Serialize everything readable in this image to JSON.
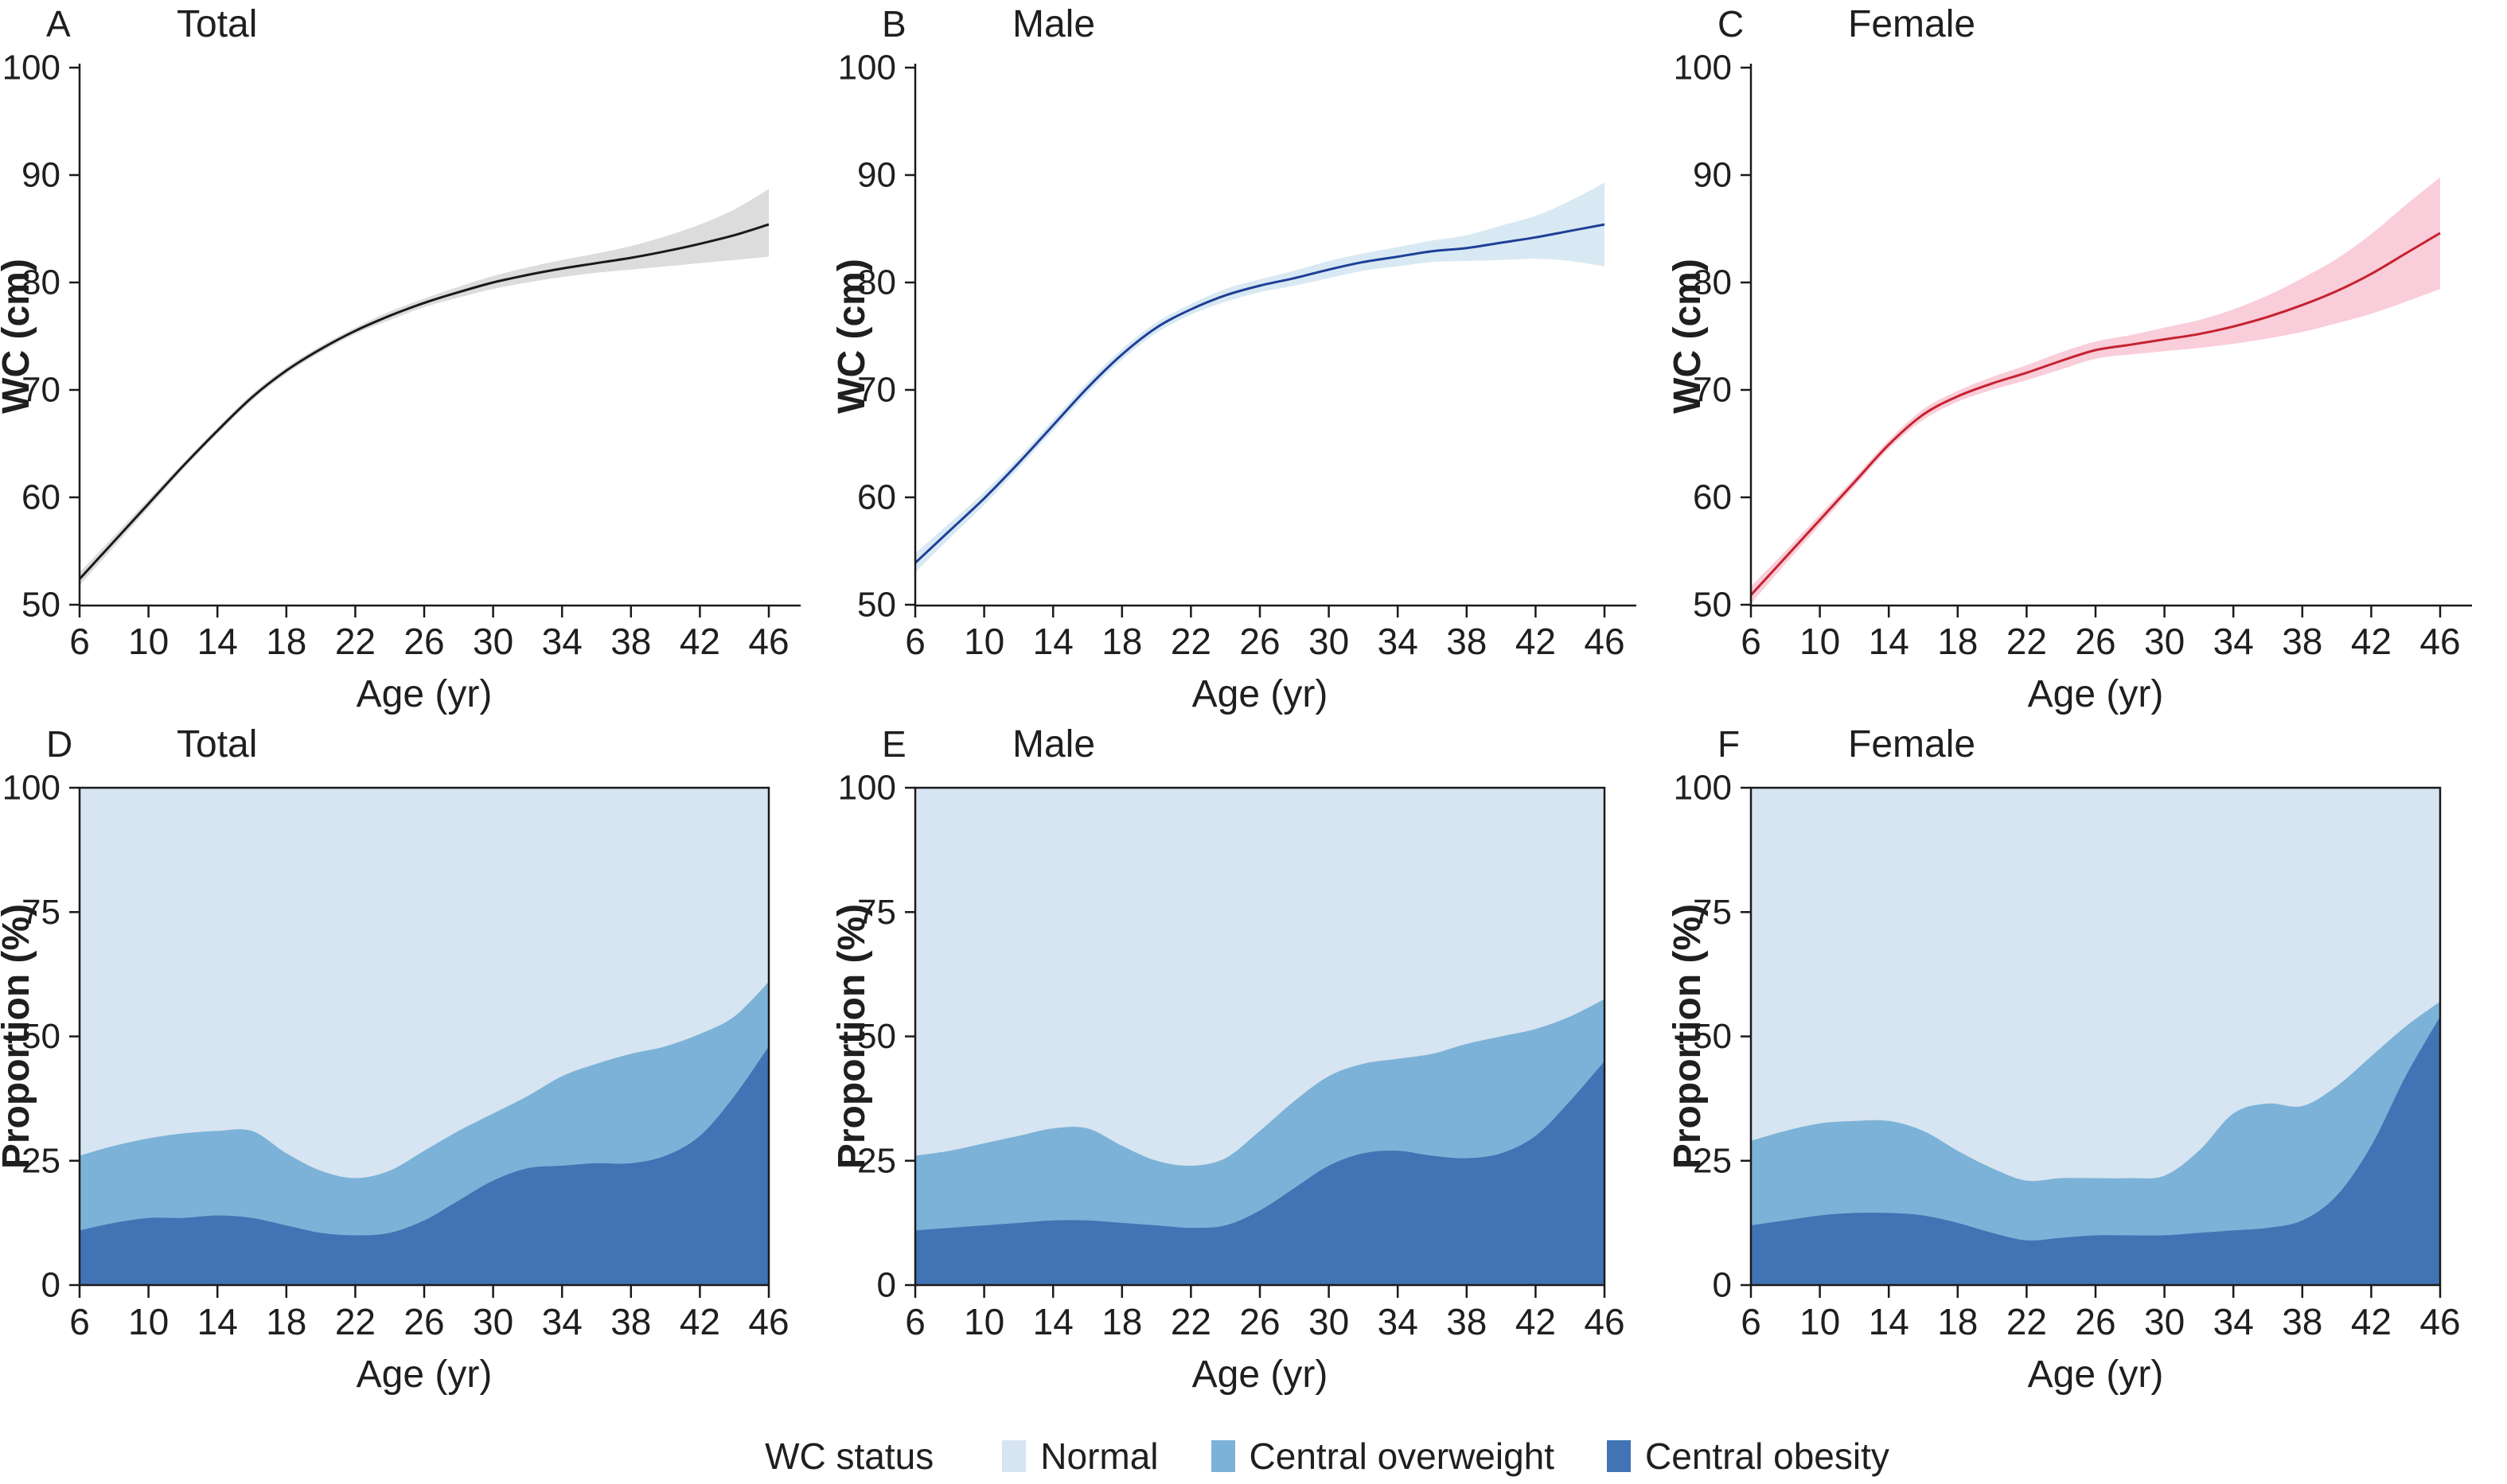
{
  "figure": {
    "background": "#ffffff",
    "text_color": "#1f1f1f",
    "axis_color": "#1a1a1a"
  },
  "legend": {
    "title": "WC status",
    "items": [
      {
        "label": "Normal",
        "color": "#d7e4f1"
      },
      {
        "label": "Central overweight",
        "color": "#7cb2d7"
      },
      {
        "label": "Central obesity",
        "color": "#4273b4"
      }
    ]
  },
  "chart_data": [
    {
      "panel_label": "A",
      "title": "Total",
      "type": "line",
      "xlabel": "Age (yr)",
      "ylabel": "WC (cm)",
      "xlim": [
        6,
        46
      ],
      "ylim": [
        50,
        100
      ],
      "xticks": [
        6,
        10,
        14,
        18,
        22,
        26,
        30,
        34,
        38,
        42,
        46
      ],
      "yticks": [
        50,
        60,
        70,
        80,
        90,
        100
      ],
      "line_color": "#1a1a1a",
      "band_color": "#dcdcdc",
      "x": [
        6,
        8,
        10,
        12,
        14,
        16,
        18,
        20,
        22,
        24,
        26,
        28,
        30,
        32,
        34,
        36,
        38,
        40,
        42,
        44,
        46
      ],
      "y": [
        52.4,
        55.9,
        59.4,
        62.9,
        66.2,
        69.3,
        71.8,
        73.8,
        75.5,
        76.9,
        78.1,
        79.1,
        80.0,
        80.7,
        81.3,
        81.8,
        82.3,
        82.9,
        83.6,
        84.4,
        85.4
      ],
      "ci_lower": [
        51.8,
        55.4,
        59.0,
        62.6,
        65.9,
        69.0,
        71.5,
        73.5,
        75.2,
        76.5,
        77.7,
        78.6,
        79.4,
        80.0,
        80.5,
        80.9,
        81.2,
        81.5,
        81.8,
        82.1,
        82.4
      ],
      "ci_upper": [
        53.0,
        56.4,
        59.8,
        63.2,
        66.5,
        69.6,
        72.1,
        74.1,
        75.8,
        77.3,
        78.5,
        79.6,
        80.6,
        81.4,
        82.1,
        82.7,
        83.4,
        84.3,
        85.4,
        86.8,
        88.7
      ]
    },
    {
      "panel_label": "B",
      "title": "Male",
      "type": "line",
      "xlabel": "Age (yr)",
      "ylabel": "WC (cm)",
      "xlim": [
        6,
        46
      ],
      "ylim": [
        50,
        100
      ],
      "xticks": [
        6,
        10,
        14,
        18,
        22,
        26,
        30,
        34,
        38,
        42,
        46
      ],
      "yticks": [
        50,
        60,
        70,
        80,
        90,
        100
      ],
      "line_color": "#1f3f96",
      "band_color": "#d9e9f3",
      "x": [
        6,
        8,
        10,
        12,
        14,
        16,
        18,
        20,
        22,
        24,
        26,
        28,
        30,
        32,
        34,
        36,
        38,
        40,
        42,
        44,
        46
      ],
      "y": [
        53.9,
        56.9,
        59.9,
        63.2,
        66.7,
        70.2,
        73.3,
        75.8,
        77.5,
        78.8,
        79.7,
        80.4,
        81.2,
        81.9,
        82.4,
        82.9,
        83.2,
        83.7,
        84.2,
        84.8,
        85.4
      ],
      "ci_lower": [
        53.0,
        56.2,
        59.3,
        62.7,
        66.2,
        69.7,
        72.8,
        75.3,
        77.0,
        78.2,
        79.1,
        79.7,
        80.4,
        81.1,
        81.5,
        81.9,
        82.0,
        82.1,
        82.2,
        82.0,
        81.5
      ],
      "ci_upper": [
        54.8,
        57.6,
        60.5,
        63.7,
        67.2,
        70.7,
        73.8,
        76.3,
        78.0,
        79.4,
        80.3,
        81.1,
        82.0,
        82.7,
        83.3,
        83.9,
        84.4,
        85.3,
        86.2,
        87.6,
        89.3
      ]
    },
    {
      "panel_label": "C",
      "title": "Female",
      "type": "line",
      "xlabel": "Age (yr)",
      "ylabel": "WC (cm)",
      "xlim": [
        6,
        46
      ],
      "ylim": [
        50,
        100
      ],
      "xticks": [
        6,
        10,
        14,
        18,
        22,
        26,
        30,
        34,
        38,
        42,
        46
      ],
      "yticks": [
        50,
        60,
        70,
        80,
        90,
        100
      ],
      "line_color": "#c52230",
      "band_color": "#f9cdd9",
      "x": [
        6,
        8,
        10,
        12,
        14,
        16,
        18,
        20,
        22,
        24,
        26,
        28,
        30,
        32,
        34,
        36,
        38,
        40,
        42,
        44,
        46
      ],
      "y": [
        50.9,
        54.4,
        57.9,
        61.4,
        64.9,
        67.7,
        69.4,
        70.6,
        71.6,
        72.7,
        73.7,
        74.2,
        74.7,
        75.2,
        75.9,
        76.8,
        77.9,
        79.2,
        80.8,
        82.7,
        84.6
      ],
      "ci_lower": [
        50.1,
        53.8,
        57.4,
        61.0,
        64.5,
        67.2,
        68.9,
        70.0,
        70.9,
        71.9,
        72.9,
        73.3,
        73.6,
        73.9,
        74.3,
        74.8,
        75.4,
        76.2,
        77.1,
        78.2,
        79.4
      ],
      "ci_upper": [
        51.7,
        55.0,
        58.4,
        61.8,
        65.3,
        68.2,
        69.9,
        71.2,
        72.3,
        73.5,
        74.5,
        75.1,
        75.8,
        76.5,
        77.5,
        78.8,
        80.4,
        82.2,
        84.5,
        87.2,
        89.8
      ]
    },
    {
      "panel_label": "D",
      "title": "Total",
      "type": "stacked_area",
      "xlabel": "Age (yr)",
      "ylabel": "Proportion (%)",
      "xlim": [
        6,
        46
      ],
      "ylim": [
        0,
        100
      ],
      "xticks": [
        6,
        10,
        14,
        18,
        22,
        26,
        30,
        34,
        38,
        42,
        46
      ],
      "yticks": [
        0,
        25,
        50,
        75,
        100
      ],
      "x": [
        6,
        8,
        10,
        12,
        14,
        16,
        18,
        20,
        22,
        24,
        26,
        28,
        30,
        32,
        34,
        36,
        38,
        40,
        42,
        44,
        46
      ],
      "series": [
        {
          "name": "Normal",
          "color": "#d7e4f1",
          "values": [
            74,
            72,
            70.5,
            69.5,
            69,
            69,
            73.5,
            77,
            78.5,
            77,
            73,
            69,
            65.5,
            62,
            58,
            55.5,
            53.5,
            52,
            49.5,
            46,
            39
          ]
        },
        {
          "name": "Central overweight",
          "color": "#7cb2d7",
          "values": [
            15,
            15.5,
            16,
            17,
            17,
            17.5,
            14.5,
            12.5,
            11.5,
            12.5,
            14,
            14,
            13.5,
            14.5,
            18,
            20,
            22,
            22,
            20.5,
            16,
            13
          ]
        },
        {
          "name": "Central obesity",
          "color": "#4273b4",
          "values": [
            11,
            12.5,
            13.5,
            13.5,
            14,
            13.5,
            12,
            10.5,
            10,
            10.5,
            13,
            17,
            21,
            23.5,
            24,
            24.5,
            24.5,
            26,
            30,
            38,
            48
          ]
        }
      ]
    },
    {
      "panel_label": "E",
      "title": "Male",
      "type": "stacked_area",
      "xlabel": "Age (yr)",
      "ylabel": "Proportion (%)",
      "xlim": [
        6,
        46
      ],
      "ylim": [
        0,
        100
      ],
      "xticks": [
        6,
        10,
        14,
        18,
        22,
        26,
        30,
        34,
        38,
        42,
        46
      ],
      "yticks": [
        0,
        25,
        50,
        75,
        100
      ],
      "x": [
        6,
        8,
        10,
        12,
        14,
        16,
        18,
        20,
        22,
        24,
        26,
        28,
        30,
        32,
        34,
        36,
        38,
        40,
        42,
        44,
        46
      ],
      "series": [
        {
          "name": "Normal",
          "color": "#d7e4f1",
          "values": [
            74,
            73,
            71.5,
            70,
            68.5,
            68.5,
            72,
            75,
            76,
            74.5,
            69,
            63,
            58,
            55.5,
            54.5,
            53.5,
            51.5,
            50,
            48.5,
            46,
            42.5
          ]
        },
        {
          "name": "Central overweight",
          "color": "#7cb2d7",
          "values": [
            15,
            15.5,
            16.5,
            17.5,
            18.5,
            18.5,
            15.5,
            13,
            12.5,
            13.5,
            16,
            17.5,
            18,
            18,
            18.5,
            20.5,
            23,
            23.5,
            21.5,
            17,
            12.5
          ]
        },
        {
          "name": "Central obesity",
          "color": "#4273b4",
          "values": [
            11,
            11.5,
            12,
            12.5,
            13,
            13,
            12.5,
            12,
            11.5,
            12,
            15,
            19.5,
            24,
            26.5,
            27,
            26,
            25.5,
            26.5,
            30,
            37,
            45
          ]
        }
      ]
    },
    {
      "panel_label": "F",
      "title": "Female",
      "type": "stacked_area",
      "xlabel": "Age (yr)",
      "ylabel": "Proportion (%)",
      "xlim": [
        6,
        46
      ],
      "ylim": [
        0,
        100
      ],
      "xticks": [
        6,
        10,
        14,
        18,
        22,
        26,
        30,
        34,
        38,
        42,
        46
      ],
      "yticks": [
        0,
        25,
        50,
        75,
        100
      ],
      "x": [
        6,
        8,
        10,
        12,
        14,
        16,
        18,
        20,
        22,
        24,
        26,
        28,
        30,
        32,
        34,
        36,
        38,
        40,
        42,
        44,
        46
      ],
      "series": [
        {
          "name": "Normal",
          "color": "#d7e4f1",
          "values": [
            71,
            69,
            67.5,
            67,
            67,
            69,
            73,
            76.5,
            79,
            78.5,
            78.5,
            78.5,
            78,
            73,
            65.5,
            63.5,
            64,
            60,
            54,
            48,
            43
          ]
        },
        {
          "name": "Central overweight",
          "color": "#7cb2d7",
          "values": [
            17,
            18,
            18.5,
            18.5,
            18.5,
            17,
            14.5,
            13,
            12,
            12,
            11.5,
            11.5,
            12,
            16.5,
            23.5,
            25,
            23,
            22,
            18,
            10,
            3
          ]
        },
        {
          "name": "Central obesity",
          "color": "#4273b4",
          "values": [
            12,
            13,
            14,
            14.5,
            14.5,
            14,
            12.5,
            10.5,
            9,
            9.5,
            10,
            10,
            10,
            10.5,
            11,
            11.5,
            13,
            18,
            28,
            42,
            54
          ]
        }
      ]
    }
  ]
}
